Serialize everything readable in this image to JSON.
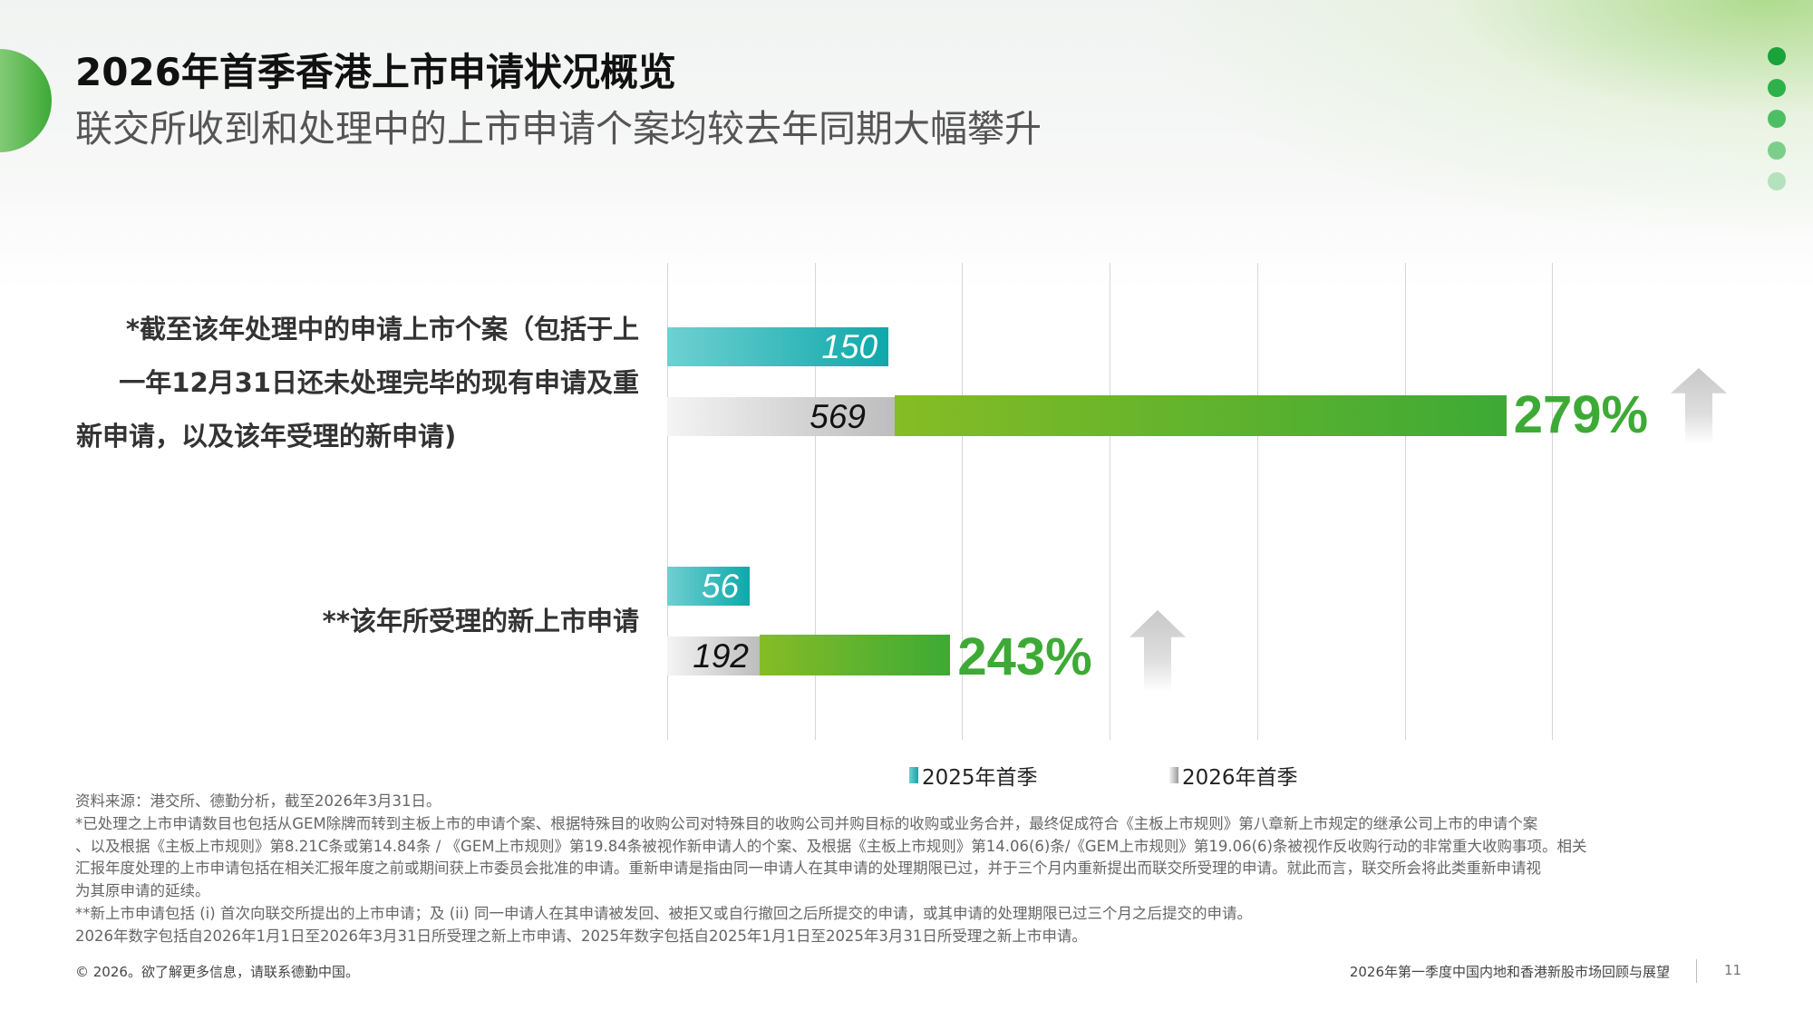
{
  "header": {
    "title": "2026年首季香港上市申请状况概览",
    "subtitle": "联交所收到和处理中的上市申请个案均较去年同期大幅攀升"
  },
  "colors": {
    "green": "#3daa35",
    "teal": "#0fa8aa",
    "gray": "#bdbdbd",
    "dots": [
      "#1aa33a",
      "#2fb14a",
      "#4dbf63",
      "#7ccf8b",
      "#b3e2bb"
    ]
  },
  "chart_data": {
    "type": "bar",
    "orientation": "horizontal",
    "xlim": [
      0,
      600
    ],
    "grid": true,
    "legend_position": "bottom",
    "categories": [
      {
        "label_lines": [
          "*截至该年处理中的申请上市个案（包括于上",
          "一年12月31日还未处理完毕的现有申请及重",
          "新申请，以及该年受理的新申请)"
        ],
        "v2025": 150,
        "v2026": 569,
        "change": "279%"
      },
      {
        "label_lines": [
          "**该年所受理的新上市申请"
        ],
        "v2025": 56,
        "v2026": 192,
        "change": "243%"
      }
    ],
    "series": [
      {
        "name": "2025年首季",
        "color": "#0fa8aa"
      },
      {
        "name": "2026年首季",
        "color": "#bdbdbd"
      }
    ],
    "values_text": {
      "a2025": "150",
      "a2026": "569",
      "b2025": "56",
      "b2026": "192"
    }
  },
  "notes": [
    "资料来源：港交所、德勤分析，截至2026年3月31日。",
    "*已处理之上市申请数目也包括从GEM除牌而转到主板上市的申请个案、根据特殊目的收购公司对特殊目的收购公司并购目标的收购或业务合并，最终促成符合《主板上市规则》第八章新上市规定的继承公司上市的申请个案",
    "、以及根据《主板上市规则》第8.21C条或第14.84条 / 《GEM上市规则》第19.84条被视作新申请人的个案、及根据《主板上市规则》第14.06(6)条/《GEM上市规则》第19.06(6)条被视作反收购行动的非常重大收购事项。相关",
    "汇报年度处理的上市申请包括在相关汇报年度之前或期间获上市委员会批准的申请。重新申请是指由同一申请人在其申请的处理期限已过，并于三个月内重新提出而联交所受理的申请。就此而言，联交所会将此类重新申请视",
    "为其原申请的延续。",
    "**新上市申请包括 (i) 首次向联交所提出的上市申请；及 (ii) 同一申请人在其申请被发回、被拒又或自行撤回之后所提交的申请，或其申请的处理期限已过三个月之后提交的申请。",
    "2026年数字包括自2026年1月1日至2026年3月31日所受理之新上市申请、2025年数字包括自2025年1月1日至2025年3月31日所受理之新上市申请。"
  ],
  "footer": {
    "copyright": "© 2026。欲了解更多信息，请联系德勤中国。",
    "report_title": "2026年第一季度中国内地和香港新股市场回顾与展望",
    "page_number": "11"
  }
}
